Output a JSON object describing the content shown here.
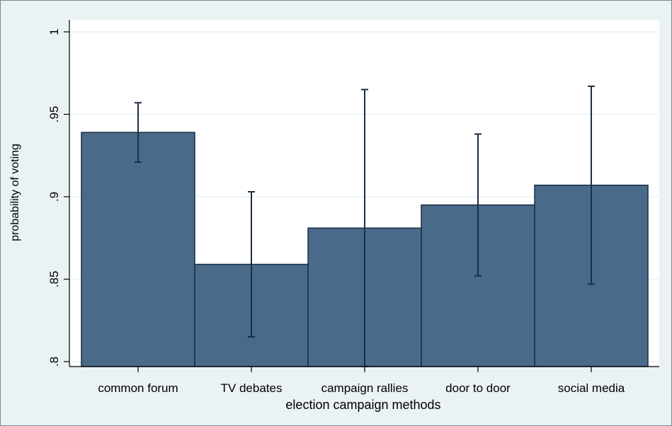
{
  "chart_data": {
    "type": "bar",
    "title": "",
    "xlabel": "election campaign methods",
    "ylabel": "probability of voting",
    "categories": [
      "common forum",
      "TV debates",
      "campaign rallies",
      "door to door",
      "social media"
    ],
    "series": [
      {
        "values": [
          0.939,
          0.859,
          0.881,
          0.895,
          0.907
        ],
        "ci_low": [
          0.921,
          0.815,
          0.797,
          0.852,
          0.847
        ],
        "ci_high": [
          0.957,
          0.903,
          0.965,
          0.938,
          0.967
        ]
      }
    ],
    "ylim": [
      0.797,
      1.0
    ],
    "yticks": [
      0.8,
      0.85,
      0.9,
      0.95,
      1.0
    ],
    "ytick_labels": [
      ".8",
      ".85",
      ".9",
      ".95",
      "1"
    ],
    "grid": true,
    "colors": {
      "outer_background": "#eaf2f3",
      "plot_background": "#ffffff",
      "bar_fill": "#4a6a8a",
      "bar_edge": "#1b2e44",
      "error_bar": "#1b2e44",
      "grid": "#eaf2f3"
    }
  }
}
